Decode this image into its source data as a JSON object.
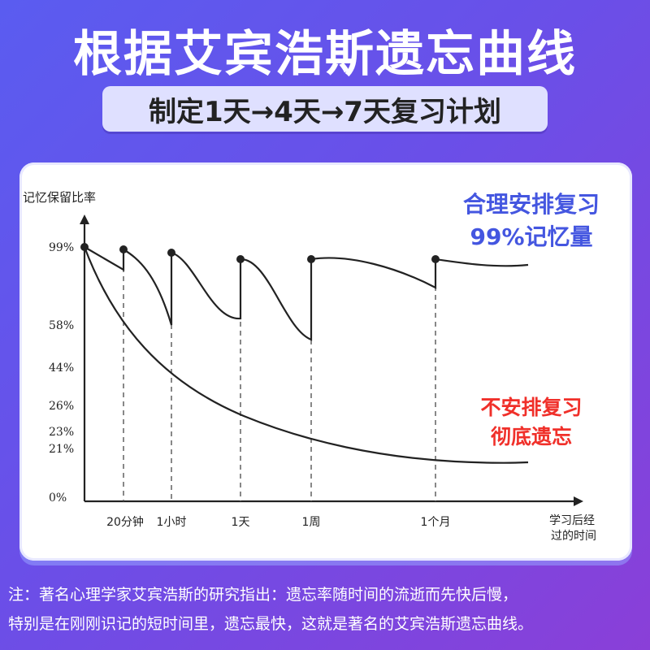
{
  "header": {
    "title": "根据艾宾浩斯遗忘曲线",
    "subtitle": "制定1天→4天→7天复习计划"
  },
  "chart_data": {
    "type": "line",
    "ylabel": "记忆保留比率",
    "xlabel_line1": "学习后经",
    "xlabel_line2": "过的时间",
    "y_ticks": [
      "99%",
      "58%",
      "44%",
      "26%",
      "23%",
      "21%",
      "0%"
    ],
    "x_ticks": [
      "20分钟",
      "1小时",
      "1天",
      "1周",
      "1个月"
    ],
    "series": [
      {
        "values": [
          99,
          58,
          44,
          35,
          26,
          23,
          21,
          20
        ]
      },
      {
        "values": [
          99,
          94,
          99,
          58,
          99,
          62,
          99,
          55,
          99,
          86,
          99,
          95
        ]
      }
    ],
    "annotations": {
      "good_line1": "合理安排复习",
      "good_line2": "99%记忆量",
      "bad_line1": "不安排复习",
      "bad_line2": "彻底遗忘"
    },
    "colors": {
      "good": "#4456e0",
      "bad": "#f0302a",
      "curve": "#222222"
    }
  },
  "note": {
    "line1": "注：著名心理学家艾宾浩斯的研究指出：遗忘率随时间的流逝而先快后慢，",
    "line2": "特别是在刚刚识记的短时间里，遗忘最快，这就是著名的艾宾浩斯遗忘曲线。"
  }
}
